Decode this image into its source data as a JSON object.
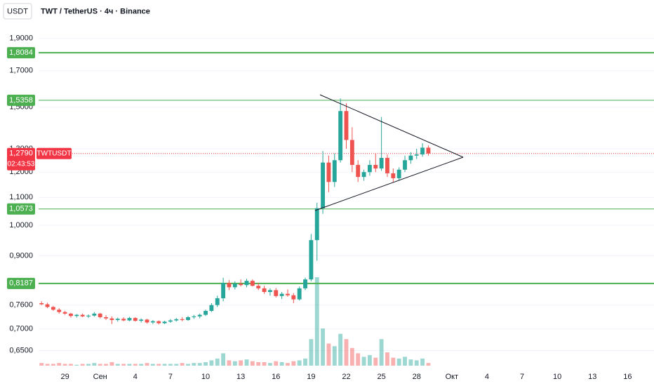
{
  "chart_data": {
    "type": "candlestick",
    "currency": "USDT",
    "title": "TWT / TetherUS · 4ч · Binance",
    "log_scale": true,
    "grid": true,
    "up_color": "#26a69a",
    "down_color": "#ef5350",
    "level_color": "#4caf50",
    "price_color": "#f23645",
    "ylim": [
      0.604,
      1.968
    ],
    "yticks": [
      {
        "value": 1.9,
        "label": "1,9000"
      },
      {
        "value": 1.7,
        "label": "1,7000"
      },
      {
        "value": 1.5,
        "label": "1,5000"
      },
      {
        "value": 1.3,
        "label": "1,3000"
      },
      {
        "value": 1.2,
        "label": "1,2000"
      },
      {
        "value": 1.1,
        "label": "1,1000"
      },
      {
        "value": 1.0,
        "label": "1,0000"
      },
      {
        "value": 0.9,
        "label": "0,9000"
      },
      {
        "value": 0.76,
        "label": "0,7600"
      },
      {
        "value": 0.7,
        "label": "0,7000"
      },
      {
        "value": 0.65,
        "label": "0,6500"
      }
    ],
    "levels": [
      {
        "value": 1.8084,
        "label": "1,8084",
        "width": 2
      },
      {
        "value": 1.5358,
        "label": "1,5358",
        "width": 1
      },
      {
        "value": 1.0573,
        "label": "1,0573",
        "width": 1
      },
      {
        "value": 0.8187,
        "label": "0,8187",
        "width": 2
      }
    ],
    "price": {
      "value": 1.279,
      "label": "1,2790",
      "symbol": "TWTUSDT",
      "countdown": "02:43:53"
    },
    "categories": [
      null,
      null,
      null,
      null,
      "29",
      null,
      null,
      null,
      null,
      null,
      "Сен",
      null,
      null,
      null,
      null,
      null,
      "4",
      null,
      null,
      null,
      null,
      null,
      "7",
      null,
      null,
      null,
      null,
      null,
      "10",
      null,
      null,
      null,
      null,
      null,
      "13",
      null,
      null,
      null,
      null,
      null,
      "16",
      null,
      null,
      null,
      null,
      null,
      "19",
      null,
      null,
      null,
      null,
      null,
      "22",
      null,
      null,
      null,
      null,
      null,
      "25",
      null,
      null,
      null,
      null,
      null,
      "28",
      null,
      null,
      null,
      null,
      null,
      "Окт",
      null,
      null,
      null,
      null,
      null,
      "4",
      null,
      null,
      null,
      null,
      null,
      "7",
      null,
      null,
      null,
      null,
      null,
      "10",
      null,
      null,
      null,
      null,
      null,
      "13",
      null,
      null,
      null,
      null,
      null,
      "16",
      null,
      null,
      null,
      null
    ],
    "open": [
      0.765,
      0.762,
      0.755,
      0.748,
      0.742,
      0.738,
      0.732,
      0.735,
      0.731,
      0.733,
      0.738,
      0.729,
      0.726,
      0.722,
      0.725,
      0.721,
      0.727,
      0.72,
      0.723,
      0.716,
      0.719,
      0.714,
      0.718,
      0.721,
      0.724,
      0.722,
      0.729,
      0.731,
      0.735,
      0.745,
      0.76,
      0.778,
      0.82,
      0.808,
      0.818,
      0.814,
      0.826,
      0.812,
      0.805,
      0.795,
      0.8,
      0.784,
      0.79,
      0.786,
      0.775,
      0.805,
      0.83,
      0.95,
      1.06,
      1.24,
      1.16,
      1.25,
      1.48,
      1.34,
      1.23,
      1.18,
      1.2,
      1.23,
      1.215,
      1.26,
      1.195,
      1.175,
      1.21,
      1.25,
      1.27,
      1.275,
      1.305,
      null,
      null,
      null,
      null,
      null,
      null,
      null,
      null,
      null,
      null,
      null,
      null,
      null,
      null,
      null,
      null,
      null,
      null,
      null,
      null,
      null,
      null,
      null,
      null,
      null,
      null,
      null,
      null,
      null,
      null,
      null,
      null,
      null,
      null,
      null,
      null,
      null,
      null
    ],
    "high": [
      0.77,
      0.766,
      0.758,
      0.752,
      0.745,
      0.74,
      0.737,
      0.738,
      0.736,
      0.742,
      0.74,
      0.734,
      0.731,
      0.728,
      0.729,
      0.73,
      0.729,
      0.726,
      0.725,
      0.722,
      0.721,
      0.72,
      0.724,
      0.727,
      0.729,
      0.732,
      0.735,
      0.738,
      0.748,
      0.765,
      0.785,
      0.835,
      0.828,
      0.825,
      0.83,
      0.832,
      0.83,
      0.82,
      0.812,
      0.805,
      0.806,
      0.795,
      0.802,
      0.792,
      0.81,
      0.835,
      0.97,
      1.08,
      1.29,
      1.27,
      1.28,
      1.545,
      1.52,
      1.4,
      1.25,
      1.21,
      1.25,
      1.28,
      1.45,
      1.275,
      1.215,
      1.22,
      1.27,
      1.285,
      1.3,
      1.325,
      1.315,
      null,
      null,
      null,
      null,
      null,
      null,
      null,
      null,
      null,
      null,
      null,
      null,
      null,
      null,
      null,
      null,
      null,
      null,
      null,
      null,
      null,
      null,
      null,
      null,
      null,
      null,
      null,
      null,
      null,
      null,
      null,
      null,
      null,
      null,
      null,
      null,
      null,
      null
    ],
    "low": [
      0.76,
      0.752,
      0.745,
      0.738,
      0.735,
      0.728,
      0.728,
      0.729,
      0.727,
      0.73,
      0.726,
      0.722,
      0.712,
      0.718,
      0.719,
      0.719,
      0.718,
      0.716,
      0.713,
      0.712,
      0.711,
      0.712,
      0.715,
      0.718,
      0.719,
      0.72,
      0.725,
      0.726,
      0.732,
      0.742,
      0.755,
      0.77,
      0.8,
      0.802,
      0.81,
      0.808,
      0.81,
      0.8,
      0.79,
      0.785,
      0.78,
      0.776,
      0.782,
      0.765,
      0.772,
      0.8,
      0.825,
      0.885,
      1.04,
      1.12,
      1.14,
      1.24,
      1.3,
      1.2,
      1.16,
      1.165,
      1.185,
      1.2,
      1.205,
      1.18,
      1.16,
      1.165,
      1.2,
      1.235,
      1.255,
      1.265,
      1.27,
      null,
      null,
      null,
      null,
      null,
      null,
      null,
      null,
      null,
      null,
      null,
      null,
      null,
      null,
      null,
      null,
      null,
      null,
      null,
      null,
      null,
      null,
      null,
      null,
      null,
      null,
      null,
      null,
      null,
      null,
      null,
      null,
      null,
      null,
      null,
      null,
      null,
      null
    ],
    "close": [
      0.762,
      0.755,
      0.748,
      0.742,
      0.738,
      0.732,
      0.735,
      0.731,
      0.733,
      0.738,
      0.729,
      0.726,
      0.722,
      0.725,
      0.721,
      0.727,
      0.72,
      0.723,
      0.716,
      0.719,
      0.714,
      0.718,
      0.721,
      0.724,
      0.722,
      0.729,
      0.731,
      0.735,
      0.745,
      0.76,
      0.778,
      0.82,
      0.808,
      0.818,
      0.814,
      0.826,
      0.812,
      0.805,
      0.795,
      0.8,
      0.784,
      0.79,
      0.786,
      0.775,
      0.805,
      0.83,
      0.95,
      1.06,
      1.24,
      1.16,
      1.25,
      1.48,
      1.34,
      1.23,
      1.18,
      1.2,
      1.23,
      1.215,
      1.26,
      1.195,
      1.175,
      1.21,
      1.25,
      1.27,
      1.275,
      1.305,
      1.279,
      null,
      null,
      null,
      null,
      null,
      null,
      null,
      null,
      null,
      null,
      null,
      null,
      null,
      null,
      null,
      null,
      null,
      null,
      null,
      null,
      null,
      null,
      null,
      null,
      null,
      null,
      null,
      null,
      null,
      null,
      null,
      null,
      null,
      null,
      null,
      null,
      null,
      null
    ],
    "volume": [
      3,
      2,
      2,
      3,
      2,
      2,
      1,
      2,
      2,
      3,
      2,
      2,
      4,
      2,
      2,
      2,
      2,
      2,
      3,
      2,
      2,
      2,
      2,
      2,
      3,
      2,
      3,
      3,
      4,
      6,
      8,
      14,
      6,
      5,
      6,
      7,
      5,
      4,
      4,
      3,
      5,
      4,
      3,
      5,
      6,
      8,
      30,
      100,
      42,
      25,
      22,
      36,
      30,
      20,
      14,
      10,
      12,
      9,
      30,
      15,
      9,
      8,
      10,
      7,
      6,
      8,
      3,
      null,
      null,
      null,
      null,
      null,
      null,
      null,
      null,
      null,
      null,
      null,
      null,
      null,
      null,
      null,
      null,
      null,
      null,
      null,
      null,
      null,
      null,
      null,
      null,
      null,
      null,
      null,
      null,
      null,
      null,
      null,
      null,
      null,
      null,
      null,
      null,
      null,
      null
    ]
  }
}
